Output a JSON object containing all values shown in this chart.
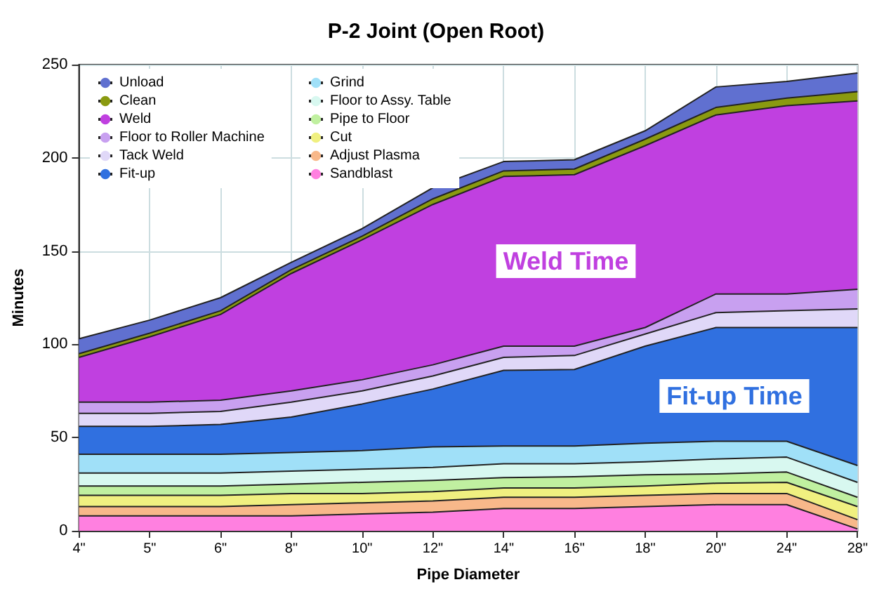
{
  "chart_data": {
    "type": "area",
    "stacked": true,
    "title": "P-2 Joint (Open Root)",
    "xlabel": "Pipe Diameter",
    "ylabel": "Minutes",
    "categories": [
      "4\"",
      "5\"",
      "6\"",
      "8\"",
      "10\"",
      "12\"",
      "14\"",
      "16\"",
      "18\"",
      "20\"",
      "24\"",
      "28\""
    ],
    "ylim": [
      0,
      250
    ],
    "yticks": [
      0,
      50,
      100,
      150,
      200,
      250
    ],
    "grid": true,
    "legend": "top left",
    "marker": "none",
    "series": [
      {
        "name": "Sandblast",
        "color": "#ff80e0",
        "values": [
          8,
          8,
          8,
          8,
          9,
          10,
          12,
          12,
          13,
          14,
          14,
          1
        ]
      },
      {
        "name": "Adjust Plasma",
        "color": "#f8b88a",
        "values": [
          5,
          5,
          5,
          6,
          6,
          6,
          6,
          6,
          6,
          6,
          6,
          5
        ]
      },
      {
        "name": "Cut",
        "color": "#f0f080",
        "values": [
          6,
          6,
          6,
          6,
          5,
          5,
          5,
          5,
          5,
          5.5,
          6,
          7
        ]
      },
      {
        "name": "Pipe to Floor",
        "color": "#c0f0a0",
        "values": [
          5,
          5,
          5,
          5,
          6,
          6,
          5.5,
          6,
          6,
          5,
          5.5,
          5
        ]
      },
      {
        "name": "Floor to Assy. Table",
        "color": "#d8f8f0",
        "values": [
          7,
          7,
          7,
          7,
          7,
          7,
          7.5,
          7,
          7,
          8,
          8,
          8
        ]
      },
      {
        "name": "Grind",
        "color": "#a0e0f8",
        "values": [
          10,
          10,
          10,
          10,
          10,
          11,
          9.5,
          9.5,
          10,
          9.5,
          8.5,
          9
        ]
      },
      {
        "name": "Fit-up",
        "color": "#3070e0",
        "values": [
          15,
          15,
          16,
          19,
          25,
          31,
          40.5,
          41,
          52,
          61,
          61,
          74
        ]
      },
      {
        "name": "Tack Weld",
        "color": "#e0d8f8",
        "values": [
          7,
          7,
          7,
          8,
          7,
          7,
          7,
          7.5,
          6.5,
          8,
          9,
          10
        ]
      },
      {
        "name": "Floor to Roller Machine",
        "color": "#c8a0f0",
        "values": [
          6,
          6,
          6,
          6,
          6,
          6,
          6,
          5,
          3.5,
          10,
          9,
          10.5
        ]
      },
      {
        "name": "Weld",
        "color": "#c040e0",
        "values": [
          24,
          35,
          46,
          63,
          75,
          86,
          91,
          92,
          97.5,
          96,
          101,
          101
        ]
      },
      {
        "name": "Clean",
        "color": "#8a9a10",
        "values": [
          2,
          2,
          2,
          2,
          2,
          3,
          3,
          3,
          3.5,
          4,
          4,
          5
        ]
      },
      {
        "name": "Unload",
        "color": "#6070d0",
        "values": [
          8,
          7,
          7,
          4,
          4,
          6,
          5,
          5,
          4.5,
          11,
          9,
          10
        ]
      }
    ],
    "annotations": [
      "Weld Time",
      "Fit-up Time"
    ]
  }
}
